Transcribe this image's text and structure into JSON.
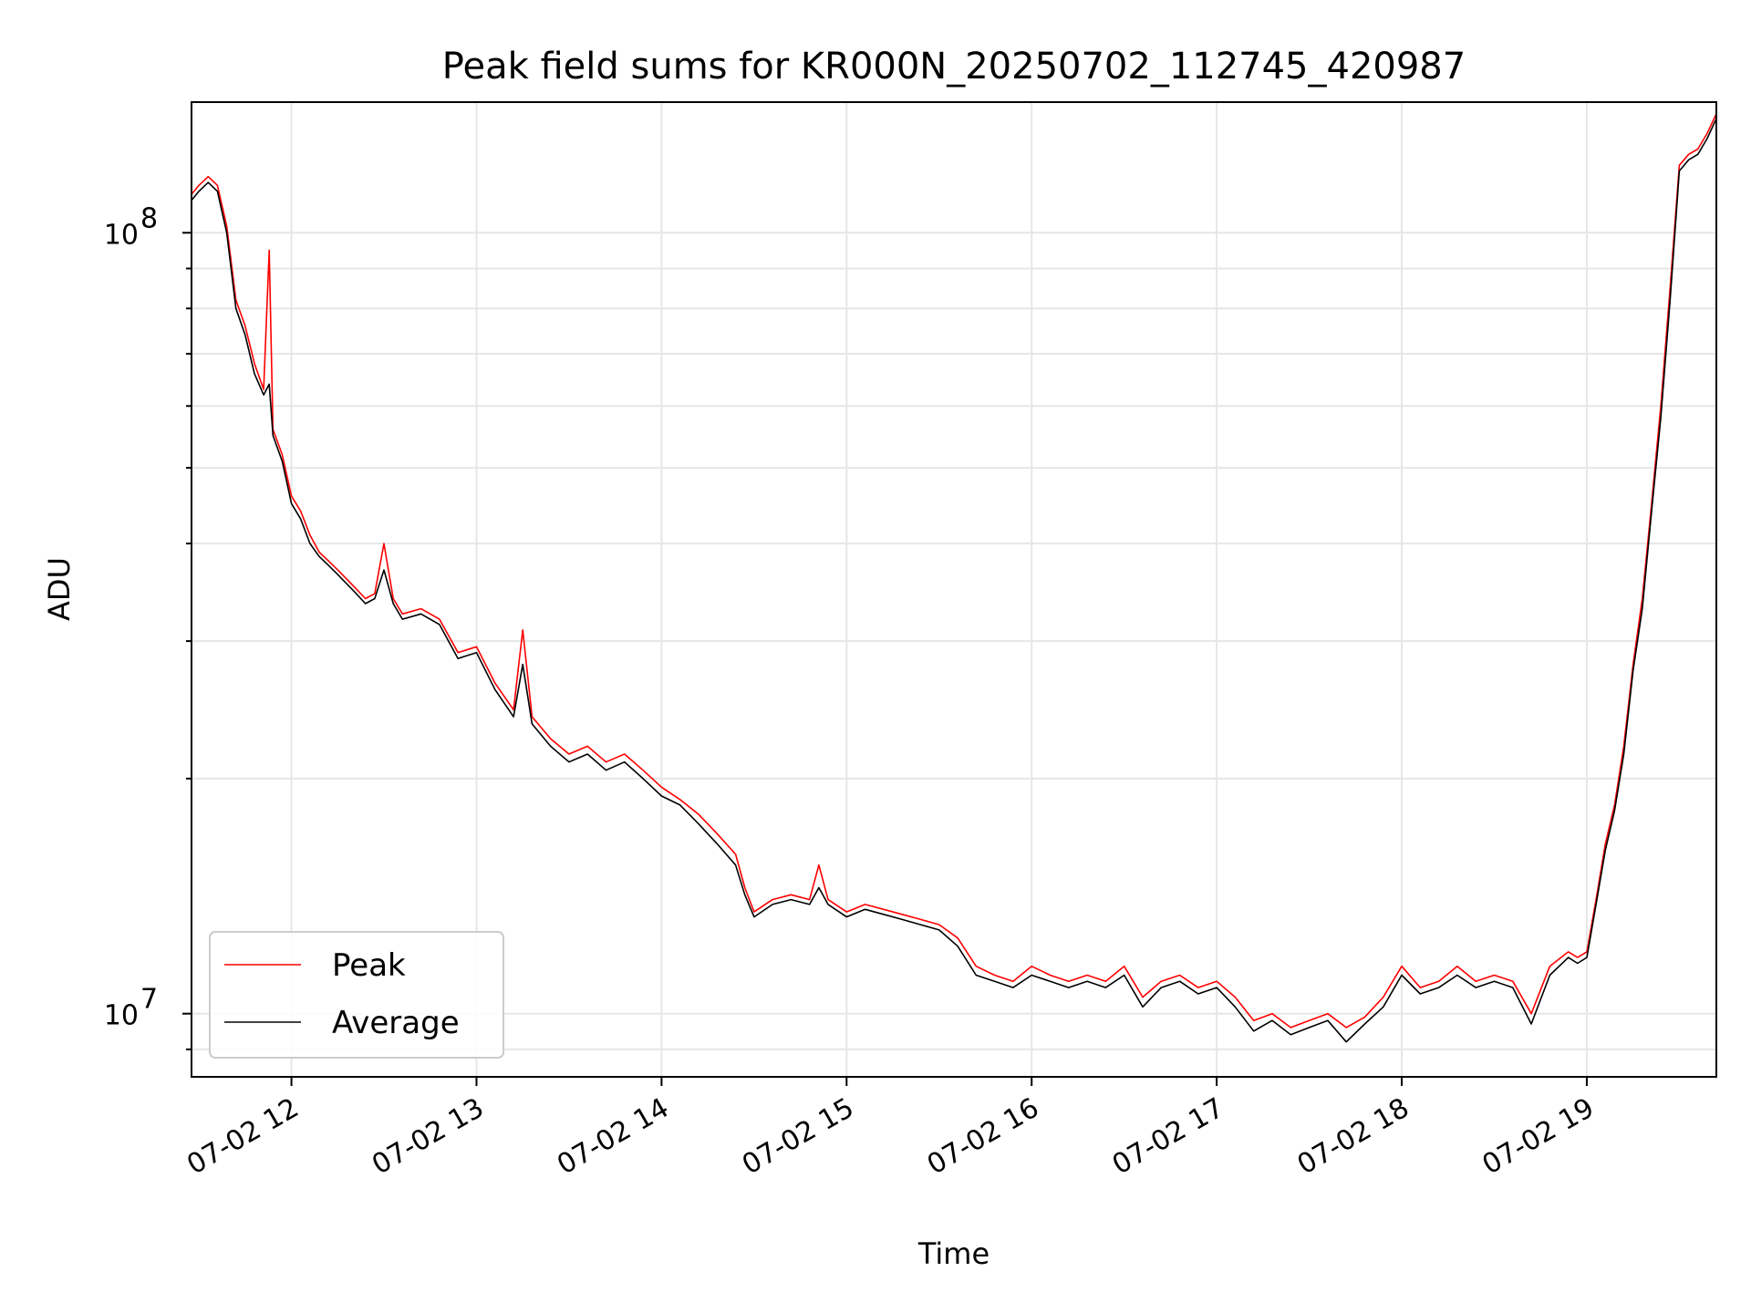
{
  "chart_data": {
    "type": "line",
    "title": "Peak field sums for KR000N_20250702_112745_420987",
    "xlabel": "Time",
    "ylabel": "ADU",
    "x_tick_labels": [
      "07-02 12",
      "07-02 13",
      "07-02 14",
      "07-02 15",
      "07-02 16",
      "07-02 17",
      "07-02 18",
      "07-02 19"
    ],
    "x_tick_hours": [
      12,
      13,
      14,
      15,
      16,
      17,
      18,
      19
    ],
    "xlim_hours": [
      11.46,
      19.7
    ],
    "y_scale": "log",
    "ylim": [
      8300000.0,
      147000000.0
    ],
    "y_major_ticks": [
      10000000.0,
      100000000.0
    ],
    "y_major_tick_labels": [
      {
        "base": "10",
        "exp": "7"
      },
      {
        "base": "10",
        "exp": "8"
      }
    ],
    "grid": true,
    "legend": {
      "position": "lower-left",
      "entries": [
        "Peak",
        "Average"
      ]
    },
    "colors": {
      "peak": "#ff0000",
      "average": "#000000"
    },
    "series": [
      {
        "name": "Peak",
        "x": [
          11.46,
          11.5,
          11.55,
          11.6,
          11.65,
          11.7,
          11.75,
          11.8,
          11.85,
          11.88,
          11.9,
          11.95,
          12.0,
          12.05,
          12.1,
          12.15,
          12.2,
          12.25,
          12.3,
          12.35,
          12.4,
          12.45,
          12.5,
          12.55,
          12.6,
          12.7,
          12.8,
          12.9,
          13.0,
          13.1,
          13.2,
          13.25,
          13.3,
          13.4,
          13.5,
          13.6,
          13.7,
          13.8,
          13.9,
          14.0,
          14.1,
          14.2,
          14.3,
          14.4,
          14.45,
          14.5,
          14.6,
          14.7,
          14.8,
          14.85,
          14.9,
          15.0,
          15.1,
          15.2,
          15.3,
          15.4,
          15.5,
          15.6,
          15.7,
          15.8,
          15.9,
          16.0,
          16.1,
          16.2,
          16.3,
          16.4,
          16.5,
          16.6,
          16.7,
          16.8,
          16.9,
          17.0,
          17.1,
          17.2,
          17.3,
          17.4,
          17.5,
          17.6,
          17.7,
          17.8,
          17.9,
          18.0,
          18.1,
          18.2,
          18.3,
          18.4,
          18.5,
          18.6,
          18.7,
          18.8,
          18.9,
          18.95,
          19.0,
          19.05,
          19.1,
          19.15,
          19.2,
          19.25,
          19.3,
          19.35,
          19.4,
          19.45,
          19.5,
          19.55,
          19.6,
          19.65,
          19.7
        ],
        "values": [
          112000000.0,
          115000000.0,
          118000000.0,
          115000000.0,
          102000000.0,
          82000000.0,
          76000000.0,
          68000000.0,
          63000000.0,
          95000000.0,
          56000000.0,
          52000000.0,
          46000000.0,
          44000000.0,
          41000000.0,
          39000000.0,
          38000000.0,
          37000000.0,
          36000000.0,
          35000000.0,
          34000000.0,
          34500000.0,
          40000000.0,
          34000000.0,
          32500000.0,
          33000000.0,
          32000000.0,
          29000000.0,
          29500000.0,
          26500000.0,
          24500000.0,
          31000000.0,
          24000000.0,
          22500000.0,
          21500000.0,
          22000000.0,
          21000000.0,
          21500000.0,
          20500000.0,
          19500000.0,
          18800000.0,
          18000000.0,
          17000000.0,
          16000000.0,
          14500000.0,
          13500000.0,
          14000000.0,
          14200000.0,
          14000000.0,
          15500000.0,
          14000000.0,
          13500000.0,
          13800000.0,
          13600000.0,
          13400000.0,
          13200000.0,
          13000000.0,
          12500000.0,
          11500000.0,
          11200000.0,
          11000000.0,
          11500000.0,
          11200000.0,
          11000000.0,
          11200000.0,
          11000000.0,
          11500000.0,
          10500000.0,
          11000000.0,
          11200000.0,
          10800000.0,
          11000000.0,
          10500000.0,
          9800000.0,
          10000000.0,
          9600000.0,
          9800000.0,
          10000000.0,
          9600000.0,
          9900000.0,
          10500000.0,
          11500000.0,
          10800000.0,
          11000000.0,
          11500000.0,
          11000000.0,
          11200000.0,
          11000000.0,
          10000000.0,
          11500000.0,
          12000000.0,
          11800000.0,
          12000000.0,
          14000000.0,
          16500000.0,
          18500000.0,
          22000000.0,
          28000000.0,
          34000000.0,
          45000000.0,
          60000000.0,
          85000000.0,
          122000000.0,
          126000000.0,
          128000000.0,
          134000000.0,
          142000000.0
        ]
      },
      {
        "name": "Average",
        "x": [
          11.46,
          11.5,
          11.55,
          11.6,
          11.65,
          11.7,
          11.75,
          11.8,
          11.85,
          11.88,
          11.9,
          11.95,
          12.0,
          12.05,
          12.1,
          12.15,
          12.2,
          12.25,
          12.3,
          12.35,
          12.4,
          12.45,
          12.5,
          12.55,
          12.6,
          12.7,
          12.8,
          12.9,
          13.0,
          13.1,
          13.2,
          13.25,
          13.3,
          13.4,
          13.5,
          13.6,
          13.7,
          13.8,
          13.9,
          14.0,
          14.1,
          14.2,
          14.3,
          14.4,
          14.45,
          14.5,
          14.6,
          14.7,
          14.8,
          14.85,
          14.9,
          15.0,
          15.1,
          15.2,
          15.3,
          15.4,
          15.5,
          15.6,
          15.7,
          15.8,
          15.9,
          16.0,
          16.1,
          16.2,
          16.3,
          16.4,
          16.5,
          16.6,
          16.7,
          16.8,
          16.9,
          17.0,
          17.1,
          17.2,
          17.3,
          17.4,
          17.5,
          17.6,
          17.7,
          17.8,
          17.9,
          18.0,
          18.1,
          18.2,
          18.3,
          18.4,
          18.5,
          18.6,
          18.7,
          18.8,
          18.9,
          18.95,
          19.0,
          19.05,
          19.1,
          19.15,
          19.2,
          19.25,
          19.3,
          19.35,
          19.4,
          19.45,
          19.5,
          19.55,
          19.6,
          19.65,
          19.7
        ],
        "values": [
          110000000.0,
          113000000.0,
          116000000.0,
          113000000.0,
          100000000.0,
          80000000.0,
          74000000.0,
          66000000.0,
          62000000.0,
          64000000.0,
          55000000.0,
          51000000.0,
          45000000.0,
          43000000.0,
          40000000.0,
          38500000.0,
          37500000.0,
          36500000.0,
          35500000.0,
          34500000.0,
          33500000.0,
          34000000.0,
          37000000.0,
          33500000.0,
          32000000.0,
          32500000.0,
          31500000.0,
          28500000.0,
          29000000.0,
          26000000.0,
          24000000.0,
          28000000.0,
          23500000.0,
          22000000.0,
          21000000.0,
          21500000.0,
          20500000.0,
          21000000.0,
          20000000.0,
          19000000.0,
          18500000.0,
          17500000.0,
          16500000.0,
          15500000.0,
          14200000.0,
          13300000.0,
          13800000.0,
          14000000.0,
          13800000.0,
          14500000.0,
          13800000.0,
          13300000.0,
          13600000.0,
          13400000.0,
          13200000.0,
          13000000.0,
          12800000.0,
          12200000.0,
          11200000.0,
          11000000.0,
          10800000.0,
          11200000.0,
          11000000.0,
          10800000.0,
          11000000.0,
          10800000.0,
          11200000.0,
          10200000.0,
          10800000.0,
          11000000.0,
          10600000.0,
          10800000.0,
          10200000.0,
          9500000.0,
          9800000.0,
          9400000.0,
          9600000.0,
          9800000.0,
          9200000.0,
          9700000.0,
          10200000.0,
          11200000.0,
          10600000.0,
          10800000.0,
          11200000.0,
          10800000.0,
          11000000.0,
          10800000.0,
          9700000.0,
          11200000.0,
          11800000.0,
          11600000.0,
          11800000.0,
          13800000.0,
          16200000.0,
          18200000.0,
          21500000.0,
          27500000.0,
          33000000.0,
          44000000.0,
          58000000.0,
          82000000.0,
          120000000.0,
          124000000.0,
          126000000.0,
          132000000.0,
          140000000.0
        ]
      }
    ]
  }
}
